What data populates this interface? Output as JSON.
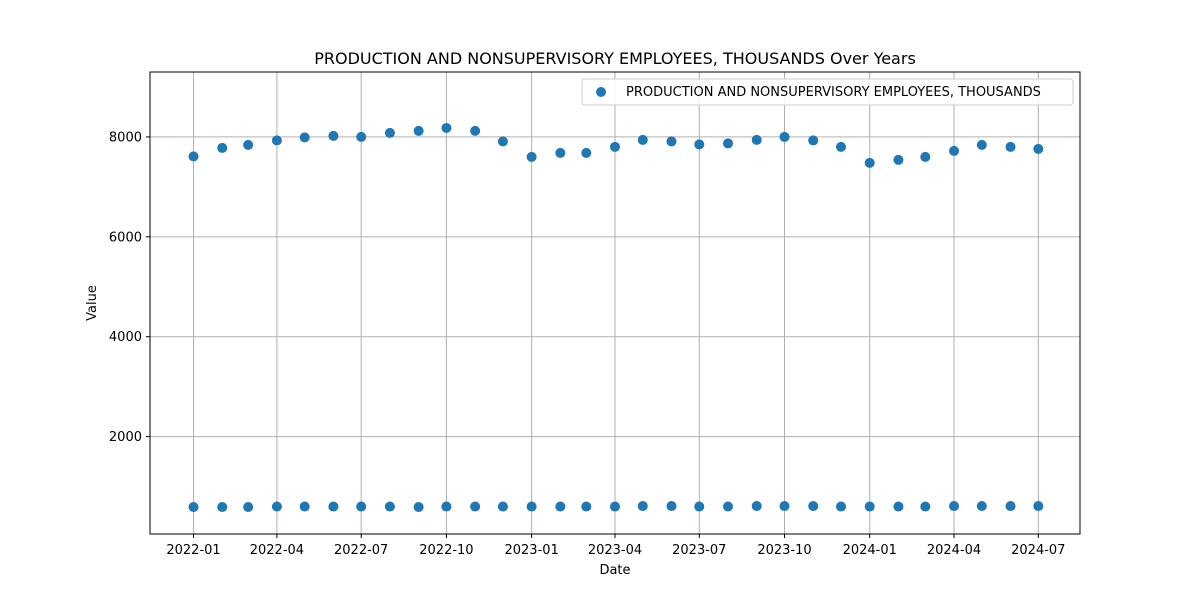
{
  "chart_data": {
    "type": "scatter",
    "title": "PRODUCTION AND NONSUPERVISORY EMPLOYEES, THOUSANDS Over Years",
    "xlabel": "Date",
    "ylabel": "Value",
    "xlim": [
      "2021-11-15",
      "2024-08-15"
    ],
    "ylim": [
      50,
      9300
    ],
    "x_ticks": [
      "2022-01-01",
      "2022-04-01",
      "2022-07-01",
      "2022-10-01",
      "2023-01-01",
      "2023-04-01",
      "2023-07-01",
      "2023-10-01",
      "2024-01-01",
      "2024-04-01",
      "2024-07-01"
    ],
    "x_tick_labels": [
      "2022-01",
      "2022-04",
      "2022-07",
      "2022-10",
      "2023-01",
      "2023-04",
      "2023-07",
      "2023-10",
      "2024-01",
      "2024-04",
      "2024-07"
    ],
    "y_ticks": [
      2000,
      4000,
      6000,
      8000
    ],
    "grid": true,
    "legend_position": "top-right",
    "color": "#1f77b4",
    "series": [
      {
        "name": "PRODUCTION AND NONSUPERVISORY EMPLOYEES, THOUSANDS",
        "x": [
          "2022-01-01",
          "2022-02-01",
          "2022-03-01",
          "2022-04-01",
          "2022-05-01",
          "2022-06-01",
          "2022-07-01",
          "2022-08-01",
          "2022-09-01",
          "2022-10-01",
          "2022-11-01",
          "2022-12-01",
          "2023-01-01",
          "2023-02-01",
          "2023-03-01",
          "2023-04-01",
          "2023-05-01",
          "2023-06-01",
          "2023-07-01",
          "2023-08-01",
          "2023-09-01",
          "2023-10-01",
          "2023-11-01",
          "2023-12-01",
          "2024-01-01",
          "2024-02-01",
          "2024-03-01",
          "2024-04-01",
          "2024-05-01",
          "2024-06-01",
          "2024-07-01",
          "2022-01-01",
          "2022-02-01",
          "2022-03-01",
          "2022-04-01",
          "2022-05-01",
          "2022-06-01",
          "2022-07-01",
          "2022-08-01",
          "2022-09-01",
          "2022-10-01",
          "2022-11-01",
          "2022-12-01",
          "2023-01-01",
          "2023-02-01",
          "2023-03-01",
          "2023-04-01",
          "2023-05-01",
          "2023-06-01",
          "2023-07-01",
          "2023-08-01",
          "2023-09-01",
          "2023-10-01",
          "2023-11-01",
          "2023-12-01",
          "2024-01-01",
          "2024-02-01",
          "2024-03-01",
          "2024-04-01",
          "2024-05-01",
          "2024-06-01",
          "2024-07-01"
        ],
        "y": [
          7610,
          7780,
          7840,
          7930,
          7990,
          8020,
          8000,
          8080,
          8120,
          8180,
          8120,
          7910,
          7600,
          7680,
          7680,
          7800,
          7940,
          7910,
          7850,
          7870,
          7940,
          8000,
          7930,
          7800,
          7480,
          7540,
          7600,
          7720,
          7840,
          7800,
          7760,
          590,
          590,
          590,
          600,
          600,
          600,
          600,
          600,
          590,
          600,
          600,
          600,
          600,
          600,
          600,
          600,
          610,
          610,
          600,
          600,
          610,
          610,
          610,
          600,
          600,
          600,
          600,
          610,
          610,
          610,
          610
        ]
      }
    ]
  }
}
